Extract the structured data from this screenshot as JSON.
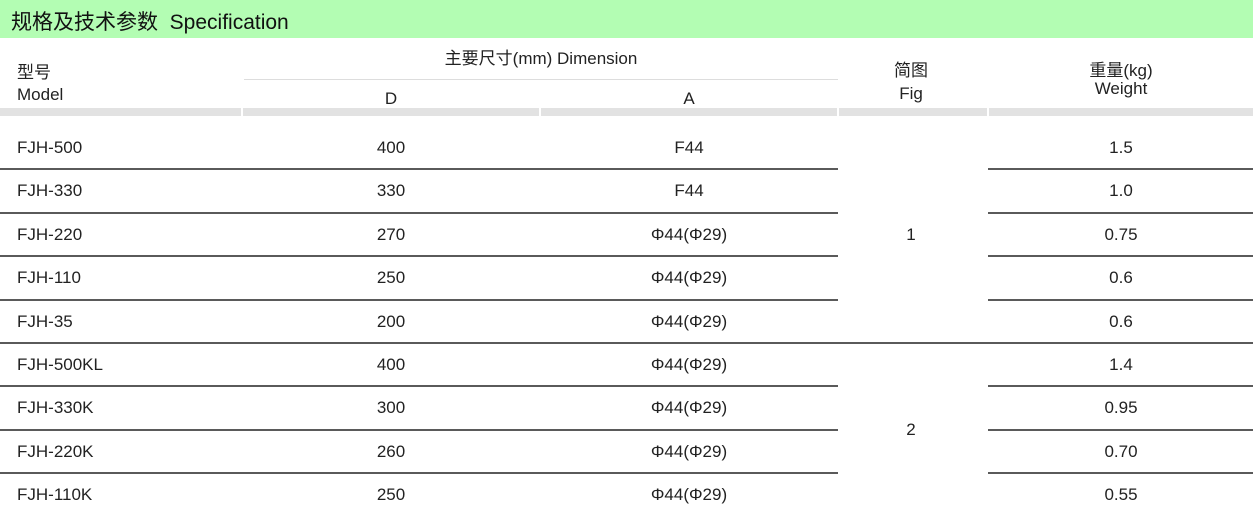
{
  "title": "规格及技术参数  Specification",
  "header": {
    "model_cn": "型号",
    "model_en": "Model",
    "dimension": "主要尺寸(mm)  Dimension",
    "d": "D",
    "a": "A",
    "fig_cn": "简图",
    "fig_en": "Fig",
    "weight_cn": "重量(kg)",
    "weight_en": "Weight"
  },
  "rows": [
    {
      "model": "FJH-500",
      "d": "400",
      "a": "F44",
      "weight": "1.5"
    },
    {
      "model": "FJH-330",
      "d": "330",
      "a": "F44",
      "weight": "1.0"
    },
    {
      "model": "FJH-220",
      "d": "270",
      "a": "Φ44(Φ29)",
      "weight": "0.75"
    },
    {
      "model": "FJH-110",
      "d": "250",
      "a": "Φ44(Φ29)",
      "weight": "0.6"
    },
    {
      "model": "FJH-35",
      "d": "200",
      "a": "Φ44(Φ29)",
      "weight": "0.6"
    },
    {
      "model": "FJH-500KL",
      "d": "400",
      "a": "Φ44(Φ29)",
      "weight": "1.4"
    },
    {
      "model": "FJH-330K",
      "d": "300",
      "a": "Φ44(Φ29)",
      "weight": "0.95"
    },
    {
      "model": "FJH-220K",
      "d": "260",
      "a": "Φ44(Φ29)",
      "weight": "0.70"
    },
    {
      "model": "FJH-110K",
      "d": "250",
      "a": "Φ44(Φ29)",
      "weight": "0.55"
    }
  ],
  "fig_groups": [
    {
      "fig": "1",
      "rows": 5
    },
    {
      "fig": "2",
      "rows": 4
    }
  ],
  "colors": {
    "banner": "#b3fdb3",
    "rule": "#5a5a5a"
  }
}
